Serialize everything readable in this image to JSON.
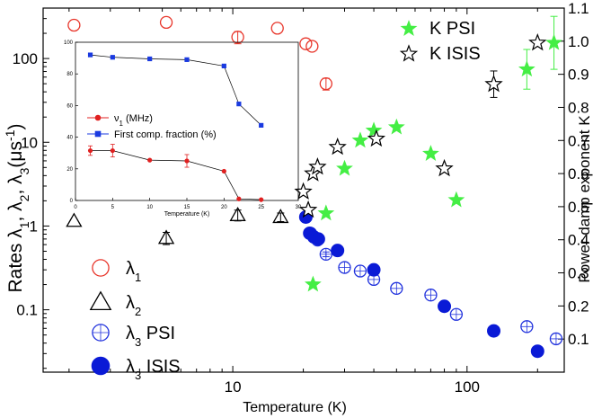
{
  "chart_data": [
    {
      "type": "scatter",
      "xscale": "log",
      "yscale": "log",
      "xlim": [
        1.55,
        260
      ],
      "ylim": [
        0.018,
        400
      ],
      "y2lim": [
        0.0,
        1.1
      ],
      "xlabel": "Temperature (K)",
      "ylabel": "Rates λ1, λ2, λ3(μs-1)",
      "ylabel_parts": [
        "Rates λ",
        "1",
        ", λ",
        "2",
        ", λ",
        "3",
        "(μs",
        "-1",
        ")"
      ],
      "y2label": "Power damp exponent K",
      "x_ticks": [
        10,
        100
      ],
      "x_tick_labels": [
        "10",
        "100"
      ],
      "y_ticks": [
        0.1,
        1,
        10,
        100
      ],
      "y_tick_labels": [
        "0.1",
        "1",
        "10",
        "100"
      ],
      "y2_ticks": [
        0.1,
        0.2,
        0.3,
        0.4,
        0.5,
        0.6,
        0.7,
        0.8,
        0.9,
        1.0,
        1.1
      ],
      "y2_tick_labels": [
        "0.1",
        "0.2",
        "0.3",
        "0.4",
        "0.5",
        "0.6",
        "0.7",
        "0.8",
        "0.9",
        "1.0",
        "1.1"
      ],
      "legend_left": [
        {
          "symbol": "λ",
          "sub": "1",
          "suffix": ""
        },
        {
          "symbol": "λ",
          "sub": "2",
          "suffix": ""
        },
        {
          "symbol": "λ",
          "sub": "3",
          "suffix": " PSI"
        },
        {
          "symbol": "λ",
          "sub": "3",
          "suffix": " ISIS"
        }
      ],
      "legend_right": [
        "K  PSI",
        "K  ISIS"
      ],
      "series": [
        {
          "name": "λ1",
          "axis": "left",
          "marker": "open-circle",
          "color": "#e8352a",
          "x": [
            2.1,
            5.2,
            10.5,
            15.5,
            20.5,
            21.8,
            25
          ],
          "y": [
            250,
            270,
            180,
            230,
            150,
            140,
            50
          ],
          "yerr": [
            0,
            0,
            30,
            0,
            0,
            0,
            8
          ]
        },
        {
          "name": "λ2",
          "axis": "left",
          "marker": "open-triangle",
          "color": "#000000",
          "x": [
            2.1,
            5.2,
            10.5,
            16
          ],
          "y": [
            1.15,
            0.72,
            1.35,
            1.28
          ],
          "yerr": [
            0,
            0.12,
            0.2,
            0.15
          ]
        },
        {
          "name": "λ3 PSI",
          "axis": "left",
          "marker": "open-circle-crosshair",
          "color": "#2233dd",
          "x": [
            21.5,
            23,
            25,
            30,
            35,
            40,
            50,
            70,
            90,
            180,
            240
          ],
          "y": [
            0.82,
            0.68,
            0.46,
            0.32,
            0.29,
            0.23,
            0.18,
            0.15,
            0.088,
            0.063,
            0.045
          ],
          "yerr": [
            0.05,
            0.05,
            0.03,
            0,
            0,
            0,
            0,
            0,
            0,
            0,
            0
          ]
        },
        {
          "name": "λ3 ISIS",
          "axis": "left",
          "marker": "filled-circle",
          "color": "#0a1ad6",
          "x": [
            20.5,
            21.3,
            22.2,
            23.2,
            28,
            40,
            80,
            130,
            200
          ],
          "y": [
            1.28,
            0.82,
            0.74,
            0.7,
            0.51,
            0.3,
            0.11,
            0.056,
            0.032
          ],
          "yerr": [
            0,
            0,
            0,
            0,
            0,
            0,
            0,
            0,
            0
          ]
        },
        {
          "name": "K PSI",
          "axis": "right",
          "marker": "filled-star",
          "color": "#44ee44",
          "x": [
            22,
            25,
            30,
            35,
            40,
            50,
            70,
            90,
            180,
            235
          ],
          "y": [
            0.265,
            0.48,
            0.615,
            0.7,
            0.73,
            0.74,
            0.66,
            0.52,
            0.915,
            0.995
          ],
          "yerr": [
            0,
            0,
            0,
            0,
            0,
            0,
            0,
            0,
            0.06,
            0.08
          ]
        },
        {
          "name": "K ISIS",
          "axis": "right",
          "marker": "open-star",
          "color": "#000000",
          "x": [
            20,
            21,
            22,
            23,
            28,
            41,
            80,
            130,
            200
          ],
          "y": [
            0.545,
            0.49,
            0.6,
            0.62,
            0.68,
            0.705,
            0.615,
            0.87,
            0.995
          ],
          "yerr": [
            0,
            0,
            0,
            0,
            0,
            0,
            0,
            0.04,
            0
          ]
        }
      ]
    },
    {
      "type": "line",
      "inset": true,
      "xlabel": "Temperature (K)",
      "xlim": [
        0,
        30
      ],
      "ylim": [
        0,
        100
      ],
      "x_ticks": [
        0,
        5,
        10,
        15,
        20,
        25,
        30
      ],
      "x_tick_labels": [
        "0",
        "5",
        "10",
        "15",
        "20",
        "25",
        "30"
      ],
      "y_ticks": [
        0,
        20,
        40,
        60,
        80,
        100
      ],
      "y_tick_labels": [
        "0",
        "20",
        "40",
        "60",
        "80",
        "100"
      ],
      "legend": [
        {
          "text": "ν",
          "sub": "1",
          "suffix": " (MHz)"
        },
        {
          "text": "First comp. fraction (%)",
          "sub": "",
          "suffix": ""
        }
      ],
      "series": [
        {
          "name": "ν1 (MHz)",
          "marker": "filled-circle",
          "color": "#e02020",
          "x": [
            2,
            5,
            10,
            15,
            20,
            22,
            25
          ],
          "y": [
            31.5,
            31.5,
            25.5,
            25,
            18.5,
            1,
            0.5
          ],
          "yerr": [
            3,
            4,
            0,
            4,
            0,
            0,
            0
          ]
        },
        {
          "name": "First comp. fraction (%)",
          "marker": "filled-square",
          "color": "#1a3ae0",
          "x": [
            2,
            5,
            10,
            15,
            20,
            22,
            25
          ],
          "y": [
            92,
            90.5,
            89.5,
            89,
            85,
            61,
            47.5
          ],
          "yerr": [
            0,
            0,
            0,
            0,
            0,
            0,
            0
          ]
        }
      ]
    }
  ]
}
